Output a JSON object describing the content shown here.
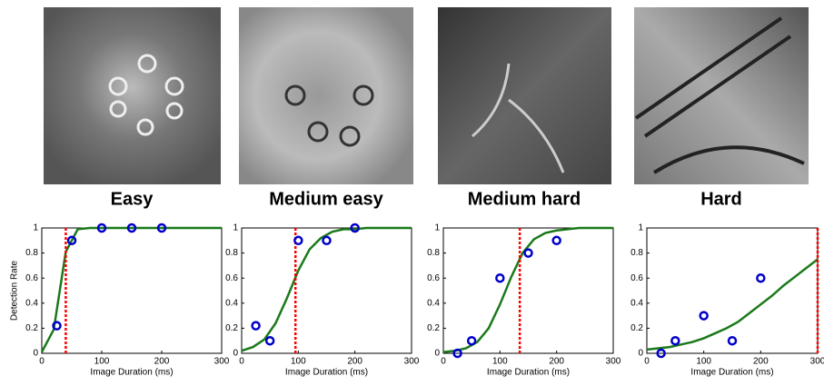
{
  "chart_data": [
    {
      "type": "scatter",
      "title": "Easy",
      "xlabel": "Image Duration (ms)",
      "ylabel": "Detection Rate",
      "xlim": [
        0,
        300
      ],
      "ylim": [
        0,
        1
      ],
      "xticks": [
        0,
        100,
        200,
        300
      ],
      "yticks": [
        0,
        0.2,
        0.4,
        0.6,
        0.8,
        1
      ],
      "series": [
        {
          "kind": "points",
          "color": "#0000cc",
          "x": [
            25,
            50,
            100,
            150,
            200
          ],
          "values": [
            0.22,
            0.9,
            1,
            1,
            1
          ]
        },
        {
          "kind": "curve",
          "color": "#1a7a1a",
          "x": [
            0,
            20,
            40,
            60,
            80,
            100,
            120,
            140,
            160,
            180,
            200,
            220,
            240,
            260,
            280,
            300
          ],
          "values": [
            0.01,
            0.19,
            0.81,
            0.99,
            1,
            1,
            1,
            1,
            1,
            1,
            1,
            1,
            1,
            1,
            1,
            1
          ]
        }
      ],
      "threshold": {
        "value": 40,
        "color": "#ff0000"
      }
    },
    {
      "type": "scatter",
      "title": "Medium easy",
      "xlabel": "Image Duration (ms)",
      "xlim": [
        0,
        300
      ],
      "ylim": [
        0,
        1
      ],
      "xticks": [
        0,
        100,
        200,
        300
      ],
      "yticks": [
        0,
        0.2,
        0.4,
        0.6,
        0.8,
        1
      ],
      "series": [
        {
          "kind": "points",
          "color": "#0000cc",
          "x": [
            25,
            50,
            100,
            150,
            200
          ],
          "values": [
            0.22,
            0.1,
            0.9,
            0.9,
            1
          ]
        },
        {
          "kind": "curve",
          "color": "#1a7a1a",
          "x": [
            0,
            20,
            40,
            60,
            80,
            100,
            120,
            140,
            160,
            180,
            200,
            220,
            240,
            260,
            280,
            300
          ],
          "values": [
            0.02,
            0.05,
            0.11,
            0.24,
            0.44,
            0.66,
            0.83,
            0.92,
            0.97,
            0.99,
            0.99,
            1,
            1,
            1,
            1,
            1
          ]
        }
      ],
      "threshold": {
        "value": 95,
        "color": "#ff0000"
      }
    },
    {
      "type": "scatter",
      "title": "Medium hard",
      "xlabel": "Image Duration (ms)",
      "xlim": [
        0,
        300
      ],
      "ylim": [
        0,
        1
      ],
      "xticks": [
        0,
        100,
        200,
        300
      ],
      "yticks": [
        0,
        0.2,
        0.4,
        0.6,
        0.8,
        1
      ],
      "series": [
        {
          "kind": "points",
          "color": "#0000cc",
          "x": [
            25,
            50,
            100,
            150,
            200
          ],
          "values": [
            0,
            0.1,
            0.6,
            0.8,
            0.9
          ]
        },
        {
          "kind": "curve",
          "color": "#1a7a1a",
          "x": [
            0,
            20,
            40,
            60,
            80,
            100,
            120,
            140,
            160,
            180,
            200,
            220,
            240,
            260,
            280,
            300
          ],
          "values": [
            0.01,
            0.02,
            0.04,
            0.09,
            0.2,
            0.39,
            0.61,
            0.8,
            0.91,
            0.96,
            0.98,
            0.99,
            1,
            1,
            1,
            1
          ]
        }
      ],
      "threshold": {
        "value": 135,
        "color": "#ff0000"
      }
    },
    {
      "type": "scatter",
      "title": "Hard",
      "xlabel": "Image Duration (ms)",
      "xlim": [
        0,
        300
      ],
      "ylim": [
        0,
        1
      ],
      "xticks": [
        0,
        100,
        200,
        300
      ],
      "yticks": [
        0,
        0.2,
        0.4,
        0.6,
        0.8,
        1
      ],
      "series": [
        {
          "kind": "points",
          "color": "#0000cc",
          "x": [
            25,
            50,
            100,
            150,
            200
          ],
          "values": [
            0,
            0.1,
            0.3,
            0.1,
            0.6
          ]
        },
        {
          "kind": "curve",
          "color": "#1a7a1a",
          "x": [
            0,
            20,
            40,
            60,
            80,
            100,
            120,
            140,
            160,
            180,
            200,
            220,
            240,
            260,
            280,
            300
          ],
          "values": [
            0.03,
            0.04,
            0.05,
            0.07,
            0.09,
            0.12,
            0.16,
            0.2,
            0.25,
            0.32,
            0.39,
            0.46,
            0.54,
            0.61,
            0.68,
            0.75
          ]
        }
      ],
      "threshold": {
        "value": 300,
        "color": "#ff0000"
      }
    }
  ]
}
